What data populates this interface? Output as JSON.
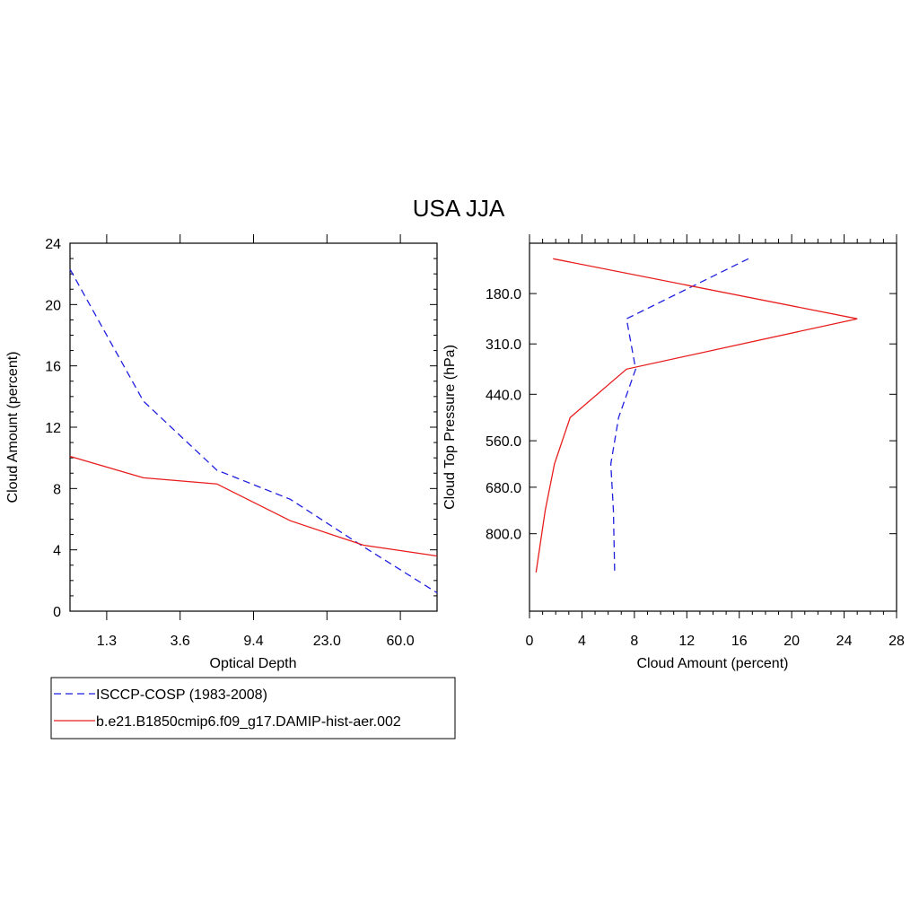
{
  "title": "USA JJA",
  "colors": {
    "obs": "#1f1fe0",
    "model": "#e81c1c"
  },
  "legend": [
    {
      "label": "ISCCP-COSP (1983-2008)",
      "color": "#1f1fe0",
      "dash": true
    },
    {
      "label": "b.e21.B1850cmip6.f09_g17.DAMIP-hist-aer.002",
      "color": "#e81c1c",
      "dash": false
    }
  ],
  "chart_data": [
    {
      "type": "line",
      "xlabel": "Optical Depth",
      "ylabel": "Cloud Amount (percent)",
      "x_tick_labels": [
        "1.3",
        "3.6",
        "9.4",
        "23.0",
        "60.0"
      ],
      "x": [
        0.3,
        1.3,
        2.45,
        3.6,
        6.5,
        9.4,
        16.2,
        23.0,
        41.5,
        60.0,
        80.0
      ],
      "ylim": [
        0,
        24
      ],
      "y_ticks": [
        0,
        4,
        8,
        12,
        16,
        20,
        24
      ],
      "series": [
        {
          "name": "ISCCP-COSP (1983-2008)",
          "x": [
            0.3,
            2.45,
            6.5,
            16.2,
            41.5,
            80.0
          ],
          "values": [
            22.3,
            13.7,
            9.2,
            7.3,
            4.2,
            1.2
          ]
        },
        {
          "name": "b.e21.B1850cmip6.f09_g17.DAMIP-hist-aer.002",
          "x": [
            0.3,
            2.45,
            6.5,
            16.2,
            41.5,
            80.0
          ],
          "values": [
            10.1,
            8.7,
            8.3,
            5.9,
            4.3,
            3.6
          ]
        }
      ]
    },
    {
      "type": "line",
      "xlabel": "Cloud Amount (percent)",
      "ylabel": "Cloud Top Pressure (hPa)",
      "xlim": [
        0,
        28
      ],
      "x_ticks": [
        0,
        4,
        8,
        12,
        16,
        20,
        24,
        28
      ],
      "y_tick_labels": [
        "180.0",
        "310.0",
        "440.0",
        "560.0",
        "680.0",
        "800.0"
      ],
      "series": [
        {
          "name": "ISCCP-COSP (1983-2008)",
          "pressure": [
            90,
            245,
            375,
            500,
            620,
            740,
            900
          ],
          "values": [
            16.7,
            7.4,
            8.1,
            6.8,
            6.2,
            6.4,
            6.5
          ]
        },
        {
          "name": "b.e21.B1850cmip6.f09_g17.DAMIP-hist-aer.002",
          "pressure": [
            90,
            245,
            375,
            500,
            620,
            740,
            900
          ],
          "values": [
            1.8,
            25.0,
            7.4,
            3.1,
            1.9,
            1.2,
            0.5
          ]
        }
      ]
    }
  ]
}
